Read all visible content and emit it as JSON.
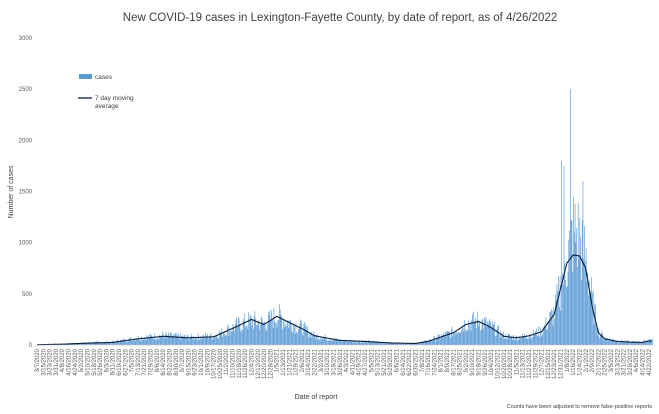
{
  "chart_data": {
    "type": "bar",
    "title": "New COVID-19 cases in Lexington-Fayette County, by date of report, as of 4/26/2022",
    "xlabel": "Date of report",
    "ylabel": "Number of cases",
    "ylim": [
      0,
      3000
    ],
    "yticks": [
      0,
      500,
      1000,
      1500,
      2000,
      2500,
      3000
    ],
    "grid": false,
    "legend_position": "top-left",
    "footnote": "Counts have been adjusted to remove false-positive reports",
    "x_tick_labels": [
      "3/7/2020",
      "3/23/2020",
      "4/8/2020",
      "4/24/2020",
      "5/10/2020",
      "5/26/2020",
      "6/11/2020",
      "6/27/2020",
      "7/13/2020",
      "7/29/2020",
      "8/14/2020",
      "8/30/2020",
      "9/15/2020",
      "10/1/2020",
      "10/17/2020",
      "11/2/2020",
      "11/18/2020",
      "12/4/2020",
      "12/20/2020",
      "1/5/2021",
      "1/21/2021",
      "2/6/2021",
      "2/22/2021",
      "3/10/2021",
      "3/26/2021",
      "4/11/2021",
      "4/27/2021",
      "5/13/2021",
      "5/29/2021",
      "6/14/2021",
      "6/30/2021",
      "7/16/2021",
      "8/1/2021",
      "8/17/2021",
      "9/2/2021",
      "9/18/2021",
      "10/4/2021",
      "10/20/2021",
      "11/5/2021",
      "11/21/2021",
      "12/7/2021",
      "12/23/2021",
      "1/8/2022",
      "1/24/2022",
      "2/9/2022",
      "2/25/2022",
      "3/13/2022",
      "3/29/2022",
      "4/14/2022"
    ],
    "x_tick_labels_2": [
      "3/15/2020",
      "3/31/2020",
      "4/16/2020",
      "5/2/2020",
      "5/18/2020",
      "6/3/2020",
      "6/19/2020",
      "7/5/2020",
      "7/21/2020",
      "8/6/2020",
      "8/22/2020",
      "9/7/2020",
      "9/23/2020",
      "10/9/2020",
      "10/25/2020",
      "11/10/2020",
      "11/26/2020",
      "12/12/2020",
      "12/28/2020",
      "1/13/2021",
      "1/29/2021",
      "2/14/2021",
      "3/2/2021",
      "3/18/2021",
      "4/3/2021",
      "4/19/2021",
      "5/5/2021",
      "5/21/2021",
      "6/6/2021",
      "6/22/2021",
      "7/8/2021",
      "7/24/2021",
      "8/9/2021",
      "8/25/2021",
      "9/10/2021",
      "9/26/2021",
      "10/12/2021",
      "10/28/2021",
      "11/13/2021",
      "11/29/2021",
      "12/15/2021",
      "12/31/2021",
      "1/16/2022",
      "2/1/2022",
      "2/17/2022",
      "3/5/2022",
      "3/21/2022",
      "4/6/2022",
      "4/22/2022"
    ],
    "series": [
      {
        "name": "cases",
        "color": "#5b9bd5",
        "kind": "bar",
        "x": [
          "3/7/2020",
          "4/8/2020",
          "5/10/2020",
          "6/11/2020",
          "7/13/2020",
          "8/14/2020",
          "9/15/2020",
          "10/17/2020",
          "11/18/2020",
          "12/4/2020",
          "12/20/2020",
          "1/5/2021",
          "1/21/2021",
          "2/6/2021",
          "2/22/2021",
          "3/26/2021",
          "4/27/2021",
          "5/29/2021",
          "6/30/2021",
          "7/16/2021",
          "8/17/2021",
          "9/2/2021",
          "9/18/2021",
          "10/4/2021",
          "10/20/2021",
          "11/5/2021",
          "11/21/2021",
          "12/7/2021",
          "12/23/2021",
          "1/8/2022",
          "1/16/2022",
          "1/24/2022",
          "2/1/2022",
          "2/9/2022",
          "2/17/2022",
          "2/25/2022",
          "3/13/2022",
          "3/29/2022",
          "4/14/2022",
          "4/22/2022"
        ],
        "y": [
          3,
          10,
          22,
          30,
          70,
          95,
          75,
          90,
          200,
          240,
          210,
          290,
          220,
          170,
          90,
          45,
          35,
          20,
          15,
          40,
          130,
          220,
          240,
          180,
          90,
          75,
          95,
          140,
          320,
          850,
          1100,
          1050,
          850,
          420,
          130,
          70,
          40,
          30,
          30,
          55
        ],
        "peaks": [
          {
            "x": "1/12/2022",
            "y": 2500
          },
          {
            "x": "1/1/2022",
            "y": 1800
          },
          {
            "x": "1/4/2022",
            "y": 1750
          },
          {
            "x": "1/28/2022",
            "y": 1600
          }
        ]
      },
      {
        "name": "7 day moving average",
        "color": "#0b1d3d",
        "kind": "line",
        "x": [
          "3/7/2020",
          "4/8/2020",
          "5/10/2020",
          "6/11/2020",
          "7/13/2020",
          "8/14/2020",
          "9/15/2020",
          "10/17/2020",
          "11/18/2020",
          "12/4/2020",
          "12/20/2020",
          "1/5/2021",
          "1/21/2021",
          "2/6/2021",
          "2/22/2021",
          "3/26/2021",
          "4/27/2021",
          "5/29/2021",
          "6/30/2021",
          "7/16/2021",
          "8/17/2021",
          "9/2/2021",
          "9/18/2021",
          "10/4/2021",
          "10/20/2021",
          "11/5/2021",
          "11/21/2021",
          "12/7/2021",
          "12/23/2021",
          "1/8/2022",
          "1/16/2022",
          "1/24/2022",
          "2/1/2022",
          "2/9/2022",
          "2/17/2022",
          "2/25/2022",
          "3/13/2022",
          "3/29/2022",
          "4/14/2022",
          "4/22/2022"
        ],
        "y": [
          3,
          8,
          18,
          25,
          60,
          85,
          70,
          80,
          190,
          250,
          200,
          280,
          220,
          160,
          90,
          45,
          35,
          20,
          15,
          35,
          120,
          200,
          230,
          170,
          85,
          70,
          90,
          130,
          300,
          800,
          880,
          870,
          750,
          380,
          120,
          60,
          35,
          28,
          25,
          40
        ]
      }
    ]
  }
}
